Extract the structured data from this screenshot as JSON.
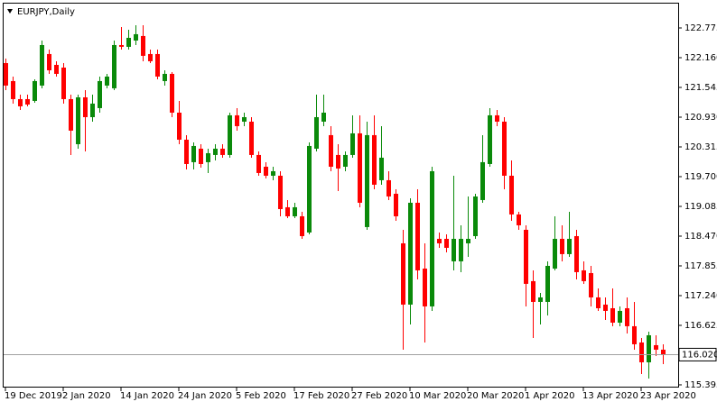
{
  "chart_data": {
    "type": "candlestick",
    "title": "EURJPY,Daily",
    "up_color": "#0a8a0a",
    "down_color": "#ff0000",
    "ylim": [
      115.376,
      123.278
    ],
    "yticks": [
      122.775,
      {
        "value": 122.16,
        "label": "122.160"
      },
      121.545,
      {
        "value": 120.93,
        "label": "120.930"
      },
      120.315,
      {
        "value": 119.7,
        "label": "119.700"
      },
      119.085,
      {
        "value": 118.47,
        "label": "118.470"
      },
      117.855,
      {
        "value": 117.24,
        "label": "117.240"
      },
      116.625,
      115.395
    ],
    "current_price": {
      "value": 116.02,
      "label": "116.020"
    },
    "categories": [
      "19 Dec 2019",
      null,
      null,
      null,
      null,
      null,
      null,
      null,
      "2 Jan 2020",
      null,
      null,
      null,
      null,
      null,
      null,
      null,
      "14 Jan 2020",
      null,
      null,
      null,
      null,
      null,
      null,
      null,
      "24 Jan 2020",
      null,
      null,
      null,
      null,
      null,
      null,
      null,
      "5 Feb 2020",
      null,
      null,
      null,
      null,
      null,
      null,
      null,
      "17 Feb 2020",
      null,
      null,
      null,
      null,
      null,
      null,
      null,
      "27 Feb 2020",
      null,
      null,
      null,
      null,
      null,
      null,
      null,
      "10 Mar 2020",
      null,
      null,
      null,
      null,
      null,
      null,
      null,
      "20 Mar 2020",
      null,
      null,
      null,
      null,
      null,
      null,
      null,
      "1 Apr 2020",
      null,
      null,
      null,
      null,
      null,
      null,
      null,
      "13 Apr 2020",
      null,
      null,
      null,
      null,
      null,
      null,
      null,
      "23 Apr 2020",
      null,
      null,
      null
    ],
    "open": [
      122.048,
      121.676,
      121.303,
      121.303,
      121.266,
      121.583,
      122.235,
      122.011,
      121.955,
      121.303,
      120.371,
      121.34,
      120.93,
      121.117,
      121.583,
      121.527,
      122.421,
      122.384,
      122.514,
      122.608,
      122.235,
      122.235,
      121.676,
      121.825,
      121.023,
      120.464,
      119.999,
      120.278,
      119.999,
      120.148,
      120.278,
      120.148,
      120.968,
      120.837,
      120.837,
      120.148,
      119.905,
      119.719,
      119.719,
      119.067,
      118.88,
      118.88,
      118.545,
      120.278,
      120.837,
      120.558,
      120.148,
      119.905,
      120.148,
      120.595,
      118.657,
      120.558,
      119.626,
      119.626,
      119.346,
      118.321,
      117.054,
      119.16,
      117.799,
      117.017,
      118.414,
      118.414,
      117.949,
      117.949,
      118.321,
      118.47,
      119.216,
      119.961,
      120.968,
      120.837,
      119.719,
      118.918,
      118.601,
      117.539,
      117.11,
      117.11,
      117.799,
      118.414,
      118.098,
      118.47,
      117.762,
      117.706,
      117.203,
      117.054,
      116.979,
      116.681,
      116.979,
      116.607,
      116.271,
      115.861,
      116.215,
      116.122
    ],
    "high": [
      122.142,
      121.769,
      121.396,
      121.396,
      121.713,
      122.514,
      122.328,
      122.086,
      122.048,
      121.396,
      121.396,
      121.489,
      121.396,
      121.769,
      121.825,
      122.514,
      122.794,
      122.738,
      122.831,
      122.831,
      122.328,
      122.328,
      121.899,
      121.862,
      121.266,
      120.558,
      120.409,
      120.371,
      120.278,
      120.371,
      120.371,
      121.023,
      121.117,
      121.023,
      120.93,
      120.222,
      119.999,
      119.905,
      119.812,
      119.216,
      119.16,
      118.974,
      120.409,
      121.396,
      121.396,
      120.744,
      120.371,
      120.222,
      120.968,
      120.968,
      120.837,
      120.968,
      120.744,
      119.812,
      119.439,
      118.601,
      119.253,
      119.439,
      118.321,
      119.905,
      118.545,
      118.508,
      119.719,
      118.694,
      119.29,
      119.346,
      120.558,
      121.117,
      121.079,
      120.93,
      120.036,
      118.974,
      118.694,
      117.762,
      117.296,
      117.949,
      118.88,
      118.694,
      118.974,
      118.601,
      117.949,
      117.855,
      117.389,
      117.203,
      117.389,
      117.017,
      117.203,
      117.11,
      116.364,
      116.495,
      116.42,
      116.234
    ],
    "low": [
      121.489,
      121.21,
      121.079,
      121.154,
      121.228,
      121.527,
      121.825,
      121.769,
      121.21,
      120.148,
      120.278,
      120.222,
      120.837,
      121.023,
      121.527,
      121.489,
      122.328,
      122.328,
      122.421,
      122.086,
      122.048,
      121.713,
      121.583,
      120.93,
      120.371,
      119.849,
      119.849,
      119.887,
      119.775,
      120.036,
      120.092,
      120.092,
      120.651,
      120.744,
      120.092,
      119.719,
      119.663,
      119.626,
      118.88,
      118.843,
      118.843,
      118.414,
      118.508,
      120.222,
      120.744,
      119.812,
      119.402,
      119.812,
      120.092,
      119.067,
      118.601,
      119.439,
      119.533,
      119.216,
      118.787,
      116.122,
      116.644,
      117.576,
      116.271,
      116.924,
      118.228,
      118.135,
      117.762,
      117.725,
      118.042,
      118.414,
      119.16,
      119.905,
      120.744,
      119.439,
      118.787,
      118.601,
      117.017,
      116.364,
      116.644,
      116.83,
      117.762,
      117.949,
      118.042,
      117.576,
      117.483,
      117.017,
      116.924,
      116.737,
      116.607,
      116.607,
      116.458,
      116.122,
      115.619,
      115.526,
      115.992,
      115.824
    ],
    "close": [
      121.583,
      121.303,
      121.154,
      121.191,
      121.676,
      122.421,
      121.899,
      121.825,
      121.303,
      120.651,
      121.34,
      120.93,
      121.21,
      121.676,
      121.769,
      122.421,
      122.384,
      122.57,
      122.645,
      122.198,
      122.086,
      121.769,
      121.825,
      121.023,
      120.464,
      119.961,
      120.334,
      119.961,
      120.185,
      120.278,
      120.148,
      120.968,
      120.744,
      120.93,
      120.148,
      119.775,
      119.719,
      119.812,
      119.029,
      118.88,
      119.067,
      118.47,
      120.334,
      120.93,
      121.023,
      119.905,
      119.868,
      120.148,
      120.595,
      119.16,
      120.558,
      119.533,
      120.092,
      119.29,
      118.88,
      117.054,
      119.16,
      117.762,
      117.017,
      119.812,
      118.321,
      118.228,
      118.414,
      118.414,
      118.414,
      119.29,
      119.999,
      120.968,
      120.837,
      119.719,
      118.918,
      118.694,
      117.483,
      117.11,
      117.203,
      117.855,
      118.414,
      118.098,
      118.414,
      117.725,
      117.539,
      117.203,
      116.979,
      116.924,
      116.681,
      116.924,
      116.607,
      116.234,
      115.861,
      116.42,
      116.122,
      116.02
    ]
  }
}
